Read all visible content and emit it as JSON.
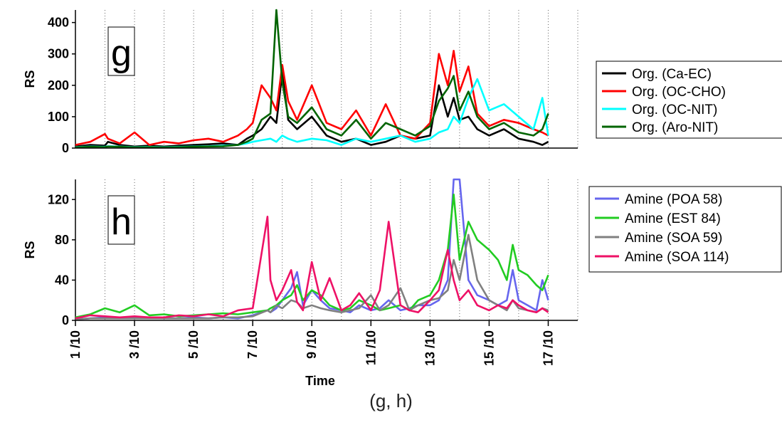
{
  "caption": "(g, h)",
  "chart_data": [
    {
      "type": "line",
      "panel_letter": "g",
      "ylabel": "RS",
      "ylim": [
        0,
        440
      ],
      "yticks": [
        0,
        100,
        200,
        300,
        400
      ],
      "xlim": [
        1,
        18
      ],
      "grid": "vertical dotted, daily",
      "legend_position": "right",
      "x": [
        1,
        1.5,
        2,
        2.1,
        2.5,
        3,
        3.5,
        4,
        4.5,
        5,
        5.5,
        6,
        6.5,
        6.8,
        7,
        7.3,
        7.6,
        7.8,
        8,
        8.2,
        8.5,
        9,
        9.5,
        10,
        10.5,
        11,
        11.5,
        12,
        12.5,
        13,
        13.3,
        13.6,
        13.8,
        14,
        14.3,
        14.6,
        15,
        15.5,
        16,
        16.5,
        16.8,
        17
      ],
      "series": [
        {
          "name": "Org. (Ca-EC)",
          "color": "#000000",
          "values": [
            5,
            10,
            8,
            20,
            10,
            5,
            8,
            5,
            8,
            10,
            12,
            15,
            10,
            30,
            40,
            60,
            100,
            80,
            240,
            90,
            60,
            100,
            40,
            20,
            30,
            10,
            20,
            40,
            30,
            40,
            200,
            100,
            160,
            90,
            100,
            60,
            40,
            60,
            30,
            20,
            10,
            20
          ]
        },
        {
          "name": "Org. (OC-CHO)",
          "color": "#ff0000",
          "values": [
            10,
            20,
            45,
            30,
            15,
            50,
            10,
            20,
            15,
            25,
            30,
            20,
            40,
            60,
            80,
            200,
            160,
            120,
            265,
            150,
            90,
            200,
            80,
            60,
            120,
            40,
            140,
            40,
            30,
            80,
            300,
            200,
            310,
            180,
            260,
            110,
            70,
            90,
            80,
            60,
            50,
            40
          ]
        },
        {
          "name": "Org. (OC-NIT)",
          "color": "#00ffff",
          "values": [
            3,
            5,
            4,
            6,
            5,
            3,
            4,
            3,
            4,
            5,
            6,
            8,
            10,
            15,
            20,
            25,
            30,
            20,
            40,
            30,
            20,
            30,
            25,
            10,
            30,
            20,
            30,
            40,
            20,
            30,
            50,
            60,
            100,
            80,
            160,
            220,
            120,
            140,
            100,
            60,
            160,
            40
          ]
        },
        {
          "name": "Org. (Aro-NIT)",
          "color": "#006400",
          "values": [
            2,
            4,
            3,
            5,
            4,
            2,
            3,
            2,
            3,
            4,
            5,
            6,
            10,
            20,
            30,
            90,
            110,
            440,
            210,
            100,
            80,
            130,
            60,
            40,
            90,
            30,
            80,
            60,
            40,
            70,
            150,
            190,
            230,
            120,
            180,
            100,
            60,
            80,
            50,
            40,
            60,
            110
          ]
        }
      ]
    },
    {
      "type": "line",
      "panel_letter": "h",
      "xlabel": "Time",
      "ylabel": "RS",
      "ylim": [
        0,
        140
      ],
      "yticks": [
        0,
        40,
        80,
        120
      ],
      "xlim": [
        1,
        18
      ],
      "xticks": [
        "1 /10",
        "3 /10",
        "5 /10",
        "7 /10",
        "9 /10",
        "11 /10",
        "13 /10",
        "15 /10",
        "17 /10"
      ],
      "grid": "vertical dotted, daily",
      "legend_position": "right",
      "x": [
        1,
        1.5,
        2,
        2.5,
        3,
        3.5,
        4,
        4.5,
        5,
        5.5,
        6,
        6.5,
        7,
        7.5,
        7.6,
        7.8,
        8,
        8.3,
        8.5,
        8.7,
        9,
        9.3,
        9.6,
        10,
        10.3,
        10.6,
        11,
        11.3,
        11.6,
        12,
        12.3,
        12.6,
        13,
        13.3,
        13.6,
        13.8,
        14,
        14.3,
        14.6,
        15,
        15.3,
        15.6,
        15.8,
        16,
        16.3,
        16.6,
        16.8,
        17
      ],
      "series": [
        {
          "name": "Amine (POA 58)",
          "color": "#6666ee",
          "values": [
            1,
            2,
            3,
            2,
            3,
            2,
            2,
            2,
            3,
            2,
            3,
            2,
            5,
            10,
            8,
            12,
            20,
            32,
            48,
            15,
            30,
            20,
            12,
            10,
            8,
            15,
            10,
            12,
            20,
            10,
            12,
            15,
            15,
            20,
            40,
            140,
            140,
            40,
            25,
            20,
            15,
            20,
            50,
            20,
            15,
            10,
            40,
            20
          ]
        },
        {
          "name": "Amine (EST 84)",
          "color": "#22cc22",
          "values": [
            3,
            6,
            12,
            8,
            15,
            5,
            6,
            4,
            5,
            6,
            7,
            6,
            8,
            10,
            12,
            15,
            20,
            25,
            35,
            20,
            30,
            25,
            15,
            10,
            12,
            20,
            15,
            10,
            12,
            15,
            10,
            20,
            25,
            40,
            70,
            125,
            60,
            98,
            80,
            70,
            60,
            40,
            75,
            50,
            45,
            35,
            30,
            45
          ]
        },
        {
          "name": "Amine (SOA 59)",
          "color": "#808080",
          "values": [
            1,
            2,
            2,
            2,
            2,
            2,
            2,
            2,
            2,
            2,
            3,
            3,
            4,
            10,
            8,
            15,
            12,
            20,
            18,
            12,
            15,
            12,
            10,
            8,
            10,
            12,
            25,
            10,
            15,
            32,
            10,
            15,
            20,
            22,
            30,
            60,
            40,
            85,
            40,
            20,
            15,
            10,
            20,
            12,
            10,
            8,
            12,
            10
          ]
        },
        {
          "name": "Amine (SOA 114)",
          "color": "#ee1166",
          "values": [
            2,
            5,
            4,
            3,
            4,
            3,
            3,
            5,
            4,
            6,
            4,
            10,
            12,
            103,
            40,
            20,
            30,
            50,
            18,
            10,
            58,
            20,
            42,
            10,
            15,
            27,
            10,
            30,
            98,
            15,
            10,
            8,
            20,
            30,
            70,
            40,
            20,
            30,
            15,
            10,
            15,
            12,
            20,
            15,
            10,
            8,
            12,
            8
          ]
        }
      ]
    }
  ]
}
